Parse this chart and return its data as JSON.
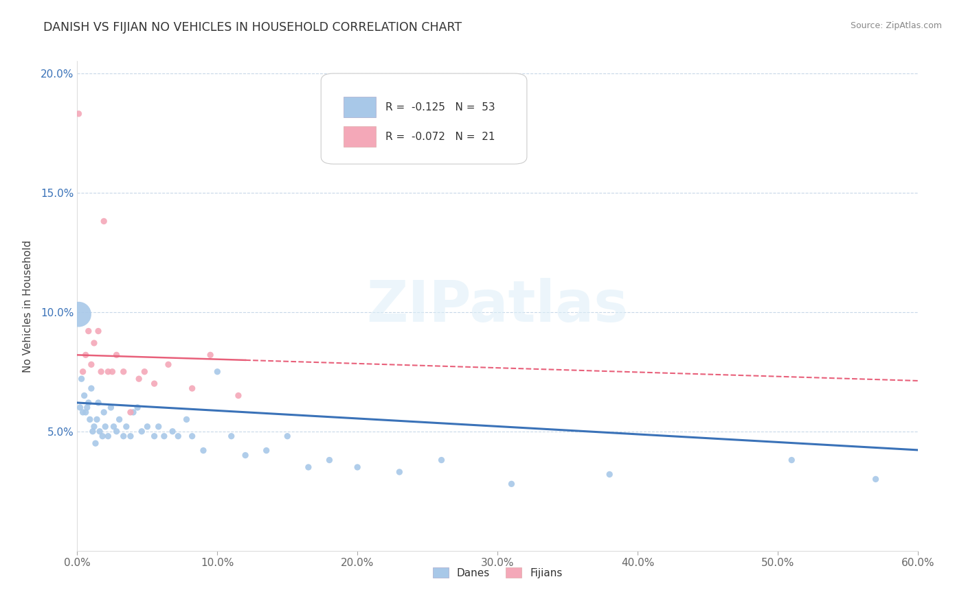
{
  "title": "DANISH VS FIJIAN NO VEHICLES IN HOUSEHOLD CORRELATION CHART",
  "source": "Source: ZipAtlas.com",
  "ylabel": "No Vehicles in Household",
  "xlim": [
    0.0,
    0.6
  ],
  "ylim": [
    0.0,
    0.205
  ],
  "xticks": [
    0.0,
    0.1,
    0.2,
    0.3,
    0.4,
    0.5,
    0.6
  ],
  "xticklabels": [
    "0.0%",
    "10.0%",
    "20.0%",
    "30.0%",
    "40.0%",
    "50.0%",
    "60.0%"
  ],
  "yticks": [
    0.0,
    0.05,
    0.1,
    0.15,
    0.2
  ],
  "yticklabels": [
    "",
    "5.0%",
    "10.0%",
    "15.0%",
    "20.0%"
  ],
  "danes_R": "-0.125",
  "danes_N": "53",
  "fijians_R": "-0.072",
  "fijians_N": "21",
  "danes_color": "#a8c8e8",
  "fijians_color": "#f4a8b8",
  "danes_line_color": "#3a72b8",
  "fijians_line_color": "#e8607a",
  "danes_x": [
    0.001,
    0.002,
    0.003,
    0.004,
    0.005,
    0.006,
    0.007,
    0.008,
    0.009,
    0.01,
    0.011,
    0.012,
    0.013,
    0.014,
    0.015,
    0.016,
    0.018,
    0.019,
    0.02,
    0.022,
    0.024,
    0.026,
    0.028,
    0.03,
    0.033,
    0.035,
    0.038,
    0.04,
    0.043,
    0.046,
    0.05,
    0.055,
    0.058,
    0.062,
    0.068,
    0.072,
    0.078,
    0.082,
    0.09,
    0.1,
    0.11,
    0.12,
    0.135,
    0.15,
    0.165,
    0.18,
    0.2,
    0.23,
    0.26,
    0.31,
    0.38,
    0.51,
    0.57
  ],
  "danes_y": [
    0.099,
    0.06,
    0.072,
    0.058,
    0.065,
    0.058,
    0.06,
    0.062,
    0.055,
    0.068,
    0.05,
    0.052,
    0.045,
    0.055,
    0.062,
    0.05,
    0.048,
    0.058,
    0.052,
    0.048,
    0.06,
    0.052,
    0.05,
    0.055,
    0.048,
    0.052,
    0.048,
    0.058,
    0.06,
    0.05,
    0.052,
    0.048,
    0.052,
    0.048,
    0.05,
    0.048,
    0.055,
    0.048,
    0.042,
    0.075,
    0.048,
    0.04,
    0.042,
    0.048,
    0.035,
    0.038,
    0.035,
    0.033,
    0.038,
    0.028,
    0.032,
    0.038,
    0.03
  ],
  "danes_sizes": [
    700,
    45,
    45,
    45,
    45,
    45,
    45,
    45,
    45,
    45,
    45,
    45,
    45,
    45,
    45,
    45,
    45,
    45,
    45,
    45,
    45,
    45,
    45,
    45,
    45,
    45,
    45,
    45,
    45,
    45,
    45,
    45,
    45,
    45,
    45,
    45,
    45,
    45,
    45,
    45,
    45,
    45,
    45,
    45,
    45,
    45,
    45,
    45,
    45,
    45,
    45,
    45,
    45
  ],
  "fijians_x": [
    0.001,
    0.004,
    0.006,
    0.008,
    0.01,
    0.012,
    0.015,
    0.017,
    0.019,
    0.022,
    0.025,
    0.028,
    0.033,
    0.038,
    0.044,
    0.048,
    0.055,
    0.065,
    0.082,
    0.095,
    0.115
  ],
  "fijians_y": [
    0.183,
    0.075,
    0.082,
    0.092,
    0.078,
    0.087,
    0.092,
    0.075,
    0.138,
    0.075,
    0.075,
    0.082,
    0.075,
    0.058,
    0.072,
    0.075,
    0.07,
    0.078,
    0.068,
    0.082,
    0.065
  ],
  "fijians_sizes": [
    45,
    45,
    45,
    45,
    45,
    45,
    45,
    45,
    45,
    45,
    45,
    45,
    45,
    45,
    45,
    45,
    45,
    45,
    45,
    45,
    45
  ],
  "watermark_text": "ZIPatlas",
  "danes_regression": [
    0.062,
    -0.033
  ],
  "fijians_regression": [
    0.082,
    -0.018
  ]
}
